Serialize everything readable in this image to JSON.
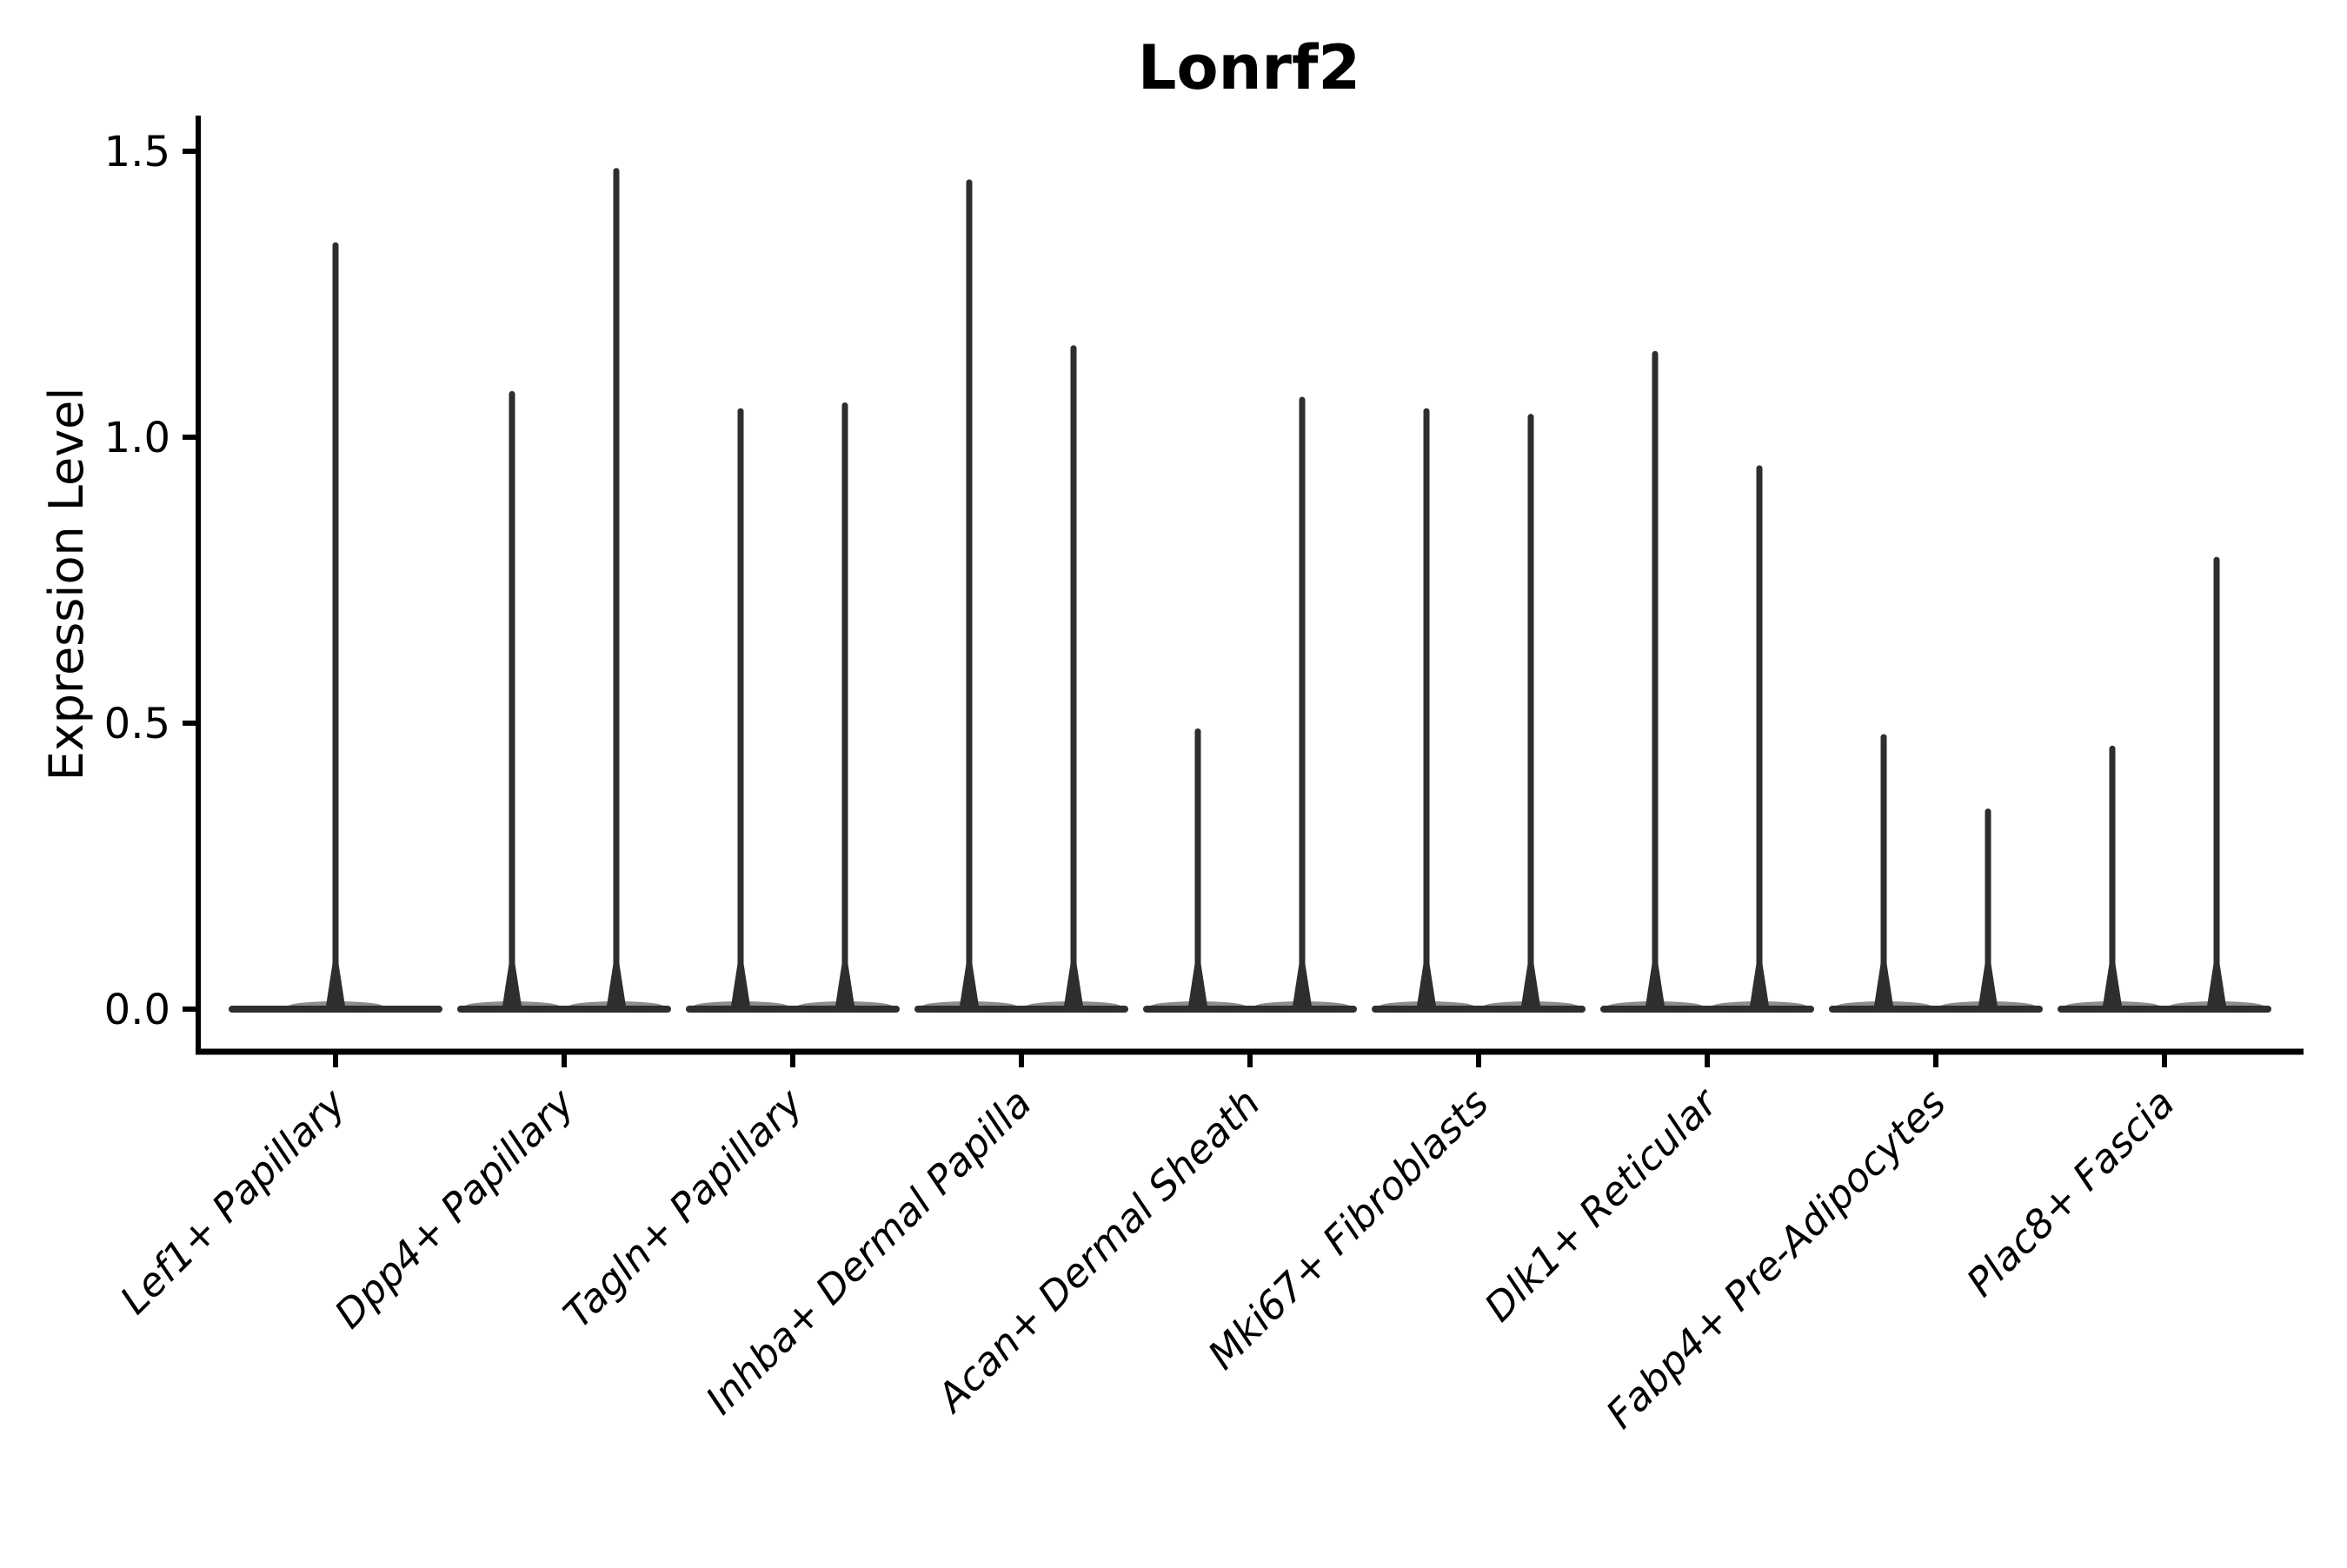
{
  "chart_data": {
    "type": "violin",
    "title": "Lonrf2",
    "ylabel": "Expression Level",
    "xlabel": "",
    "yticks": [
      0.0,
      0.5,
      1.0,
      1.5
    ],
    "ytick_labels": [
      "0.0",
      "0.5",
      "1.0",
      "1.5"
    ],
    "ylim": [
      -0.075,
      1.56
    ],
    "grid": false,
    "legend": "none",
    "violin_color": "#2e2e2e",
    "axis_color": "#000000",
    "background_color": "#ffffff",
    "categories": [
      "Lef1+ Papillary",
      "Dpp4+ Papillary",
      "Tagln+ Papillary",
      "Inhba+ Dermal Papilla",
      "Acan+ Dermal Sheath",
      "Mki67+ Fibroblasts",
      "Dlk1+ Reticular",
      "Fabp4+ Pre-Adipocytes",
      "Plac8+ Fascia"
    ],
    "violins": [
      {
        "category": "Lef1+ Papillary",
        "peaks": [
          1.34
        ]
      },
      {
        "category": "Dpp4+ Papillary",
        "peaks": [
          1.08,
          1.47
        ]
      },
      {
        "category": "Tagln+ Papillary",
        "peaks": [
          1.05,
          1.06
        ]
      },
      {
        "category": "Inhba+ Dermal Papilla",
        "peaks": [
          1.45,
          1.16
        ]
      },
      {
        "category": "Acan+ Dermal Sheath",
        "peaks": [
          0.49,
          1.07
        ]
      },
      {
        "category": "Mki67+ Fibroblasts",
        "peaks": [
          1.05,
          1.04
        ]
      },
      {
        "category": "Dlk1+ Reticular",
        "peaks": [
          1.15,
          0.95
        ]
      },
      {
        "category": "Fabp4+ Pre-Adipocytes",
        "peaks": [
          0.48,
          0.35
        ]
      },
      {
        "category": "Plac8+ Fascia",
        "peaks": [
          0.46,
          0.79
        ]
      }
    ]
  }
}
